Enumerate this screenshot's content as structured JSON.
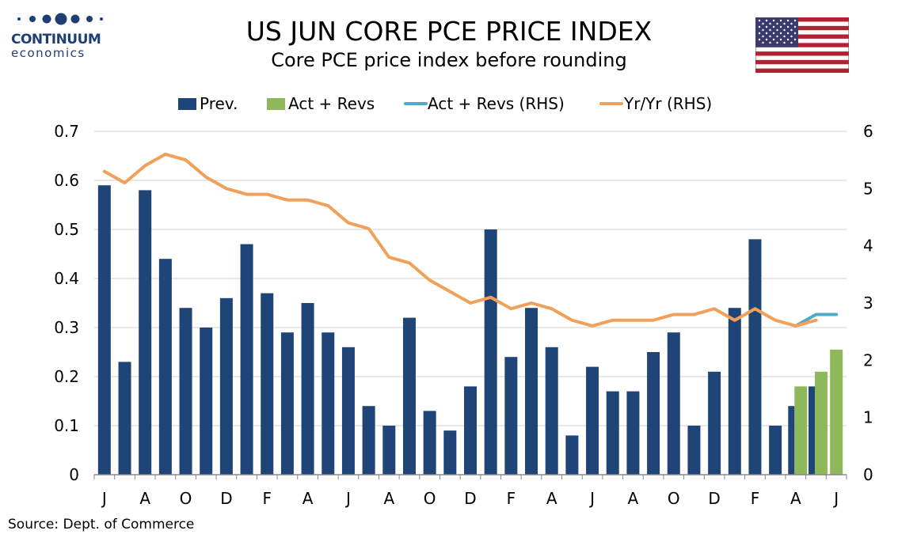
{
  "header": {
    "title": "US JUN CORE PCE PRICE INDEX",
    "subtitle": "Core PCE price index before rounding",
    "logo_name": "CONTINUUM",
    "logo_sub": "economics"
  },
  "footer": {
    "source": "Source: Dept. of Commerce"
  },
  "colors": {
    "prev": "#1f4477",
    "act": "#8fb85a",
    "act_line": "#4bacc6",
    "yoy": "#f0a058",
    "grid": "#d0d0d0",
    "logo": "#1f3f73"
  },
  "chart_data": {
    "type": "bar",
    "title": "US JUN CORE PCE PRICE INDEX",
    "subtitle": "Core PCE price index before rounding",
    "legend": [
      "Prev.",
      "Act + Revs",
      "Act + Revs (RHS)",
      "Yr/Yr (RHS)"
    ],
    "legend_position": "top",
    "grid": true,
    "y_left": {
      "min": 0,
      "max": 0.7,
      "ticks": [
        "0",
        "0.1",
        "0.2",
        "0.3",
        "0.4",
        "0.5",
        "0.6",
        "0.7"
      ]
    },
    "y_right": {
      "min": 0,
      "max": 6,
      "ticks": [
        "0",
        "1",
        "2",
        "3",
        "4",
        "5",
        "6"
      ]
    },
    "x_tick_labels": [
      "J",
      "A",
      "O",
      "D",
      "F",
      "A",
      "J",
      "A",
      "O",
      "D",
      "F",
      "A",
      "J",
      "A",
      "O",
      "D",
      "F",
      "A",
      "J"
    ],
    "n_months": 37,
    "series": [
      {
        "name": "Prev.",
        "type": "bar",
        "axis": "left",
        "values": [
          0.59,
          0.23,
          0.58,
          0.44,
          0.34,
          0.3,
          0.36,
          0.47,
          0.37,
          0.29,
          0.35,
          0.29,
          0.26,
          0.14,
          0.1,
          0.32,
          0.13,
          0.09,
          0.18,
          0.5,
          0.24,
          0.34,
          0.26,
          0.08,
          0.22,
          0.17,
          0.17,
          0.25,
          0.29,
          0.1,
          0.21,
          0.34,
          0.48,
          0.1,
          0.14,
          0.18,
          null
        ]
      },
      {
        "name": "Act + Revs",
        "type": "bar",
        "axis": "left",
        "values": [
          null,
          null,
          null,
          null,
          null,
          null,
          null,
          null,
          null,
          null,
          null,
          null,
          null,
          null,
          null,
          null,
          null,
          null,
          null,
          null,
          null,
          null,
          null,
          null,
          null,
          null,
          null,
          null,
          null,
          null,
          null,
          null,
          null,
          null,
          0.18,
          0.21,
          0.255
        ]
      },
      {
        "name": "Act + Revs (RHS)",
        "type": "line",
        "axis": "right",
        "values": [
          null,
          null,
          null,
          null,
          null,
          null,
          null,
          null,
          null,
          null,
          null,
          null,
          null,
          null,
          null,
          null,
          null,
          null,
          null,
          null,
          null,
          null,
          null,
          null,
          null,
          null,
          null,
          null,
          null,
          null,
          null,
          null,
          null,
          null,
          2.6,
          2.8,
          2.8
        ]
      },
      {
        "name": "Yr/Yr (RHS)",
        "type": "line",
        "axis": "right",
        "values": [
          5.3,
          5.1,
          5.4,
          5.6,
          5.5,
          5.2,
          5.0,
          4.9,
          4.9,
          4.8,
          4.8,
          4.7,
          4.4,
          4.3,
          3.8,
          3.7,
          3.4,
          3.2,
          3.0,
          3.1,
          2.9,
          3.0,
          2.9,
          2.7,
          2.6,
          2.7,
          2.7,
          2.7,
          2.8,
          2.8,
          2.9,
          2.7,
          2.9,
          2.7,
          2.6,
          2.7,
          null
        ]
      }
    ]
  }
}
